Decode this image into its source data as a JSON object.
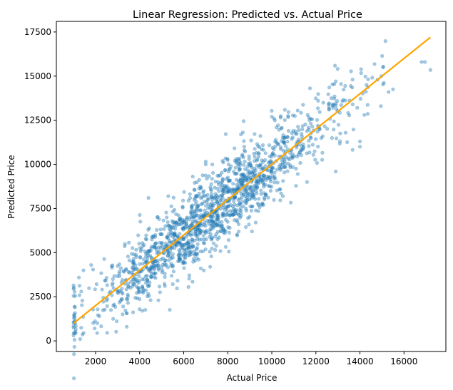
{
  "chart_data": {
    "type": "scatter",
    "title": "Linear Regression: Predicted vs. Actual Price",
    "xlabel": "Actual Price",
    "ylabel": "Predicted Price",
    "xlim": [
      220,
      17900
    ],
    "ylim": [
      -600,
      18100
    ],
    "xticks": [
      2000,
      4000,
      6000,
      8000,
      10000,
      12000,
      14000,
      16000
    ],
    "yticks": [
      0,
      2500,
      5000,
      7500,
      10000,
      12500,
      15000,
      17500
    ],
    "grid": false,
    "colors": {
      "points": "#1f77b4",
      "fit_line": "#ffa500"
    },
    "points_alpha": 0.4,
    "series": [
      {
        "kind": "scatter",
        "generation": {
          "n": 1500,
          "x_min": 1000,
          "x_max": 17200,
          "x_mean": 7300,
          "x_sd": 2900,
          "slope": 1.0,
          "noise_sd": 1100,
          "seed": 42
        },
        "points": [
          [
            1000,
            300
          ],
          [
            1000,
            750
          ],
          [
            1000,
            1050
          ],
          [
            1000,
            2550
          ],
          [
            1000,
            2950
          ],
          [
            1000,
            3150
          ],
          [
            1350,
            2800
          ],
          [
            1450,
            4000
          ],
          [
            1800,
            4300
          ],
          [
            2350,
            2450
          ],
          [
            2700,
            1750
          ],
          [
            3250,
            1950
          ],
          [
            4000,
            1800
          ],
          [
            4400,
            8100
          ],
          [
            4850,
            2300
          ],
          [
            5300,
            8200
          ],
          [
            6400,
            3350
          ],
          [
            7200,
            4200
          ],
          [
            6500,
            8950
          ],
          [
            7000,
            10000
          ],
          [
            8000,
            10250
          ],
          [
            8600,
            11700
          ],
          [
            9100,
            6200
          ],
          [
            10000,
            12700
          ],
          [
            10500,
            8200
          ],
          [
            11600,
            9000
          ],
          [
            12900,
            9600
          ],
          [
            12100,
            13600
          ],
          [
            12850,
            13850
          ],
          [
            13650,
            14350
          ],
          [
            14000,
            11300
          ],
          [
            14000,
            11000
          ],
          [
            14200,
            12800
          ],
          [
            14300,
            14500
          ],
          [
            14800,
            14800
          ],
          [
            15050,
            15500
          ],
          [
            15300,
            14100
          ],
          [
            15500,
            14250
          ],
          [
            14950,
            13300
          ],
          [
            16800,
            15800
          ],
          [
            16950,
            15800
          ],
          [
            17200,
            15350
          ]
        ]
      },
      {
        "kind": "line",
        "x": [
          1000,
          17200
        ],
        "y": [
          1000,
          17200
        ]
      }
    ]
  }
}
